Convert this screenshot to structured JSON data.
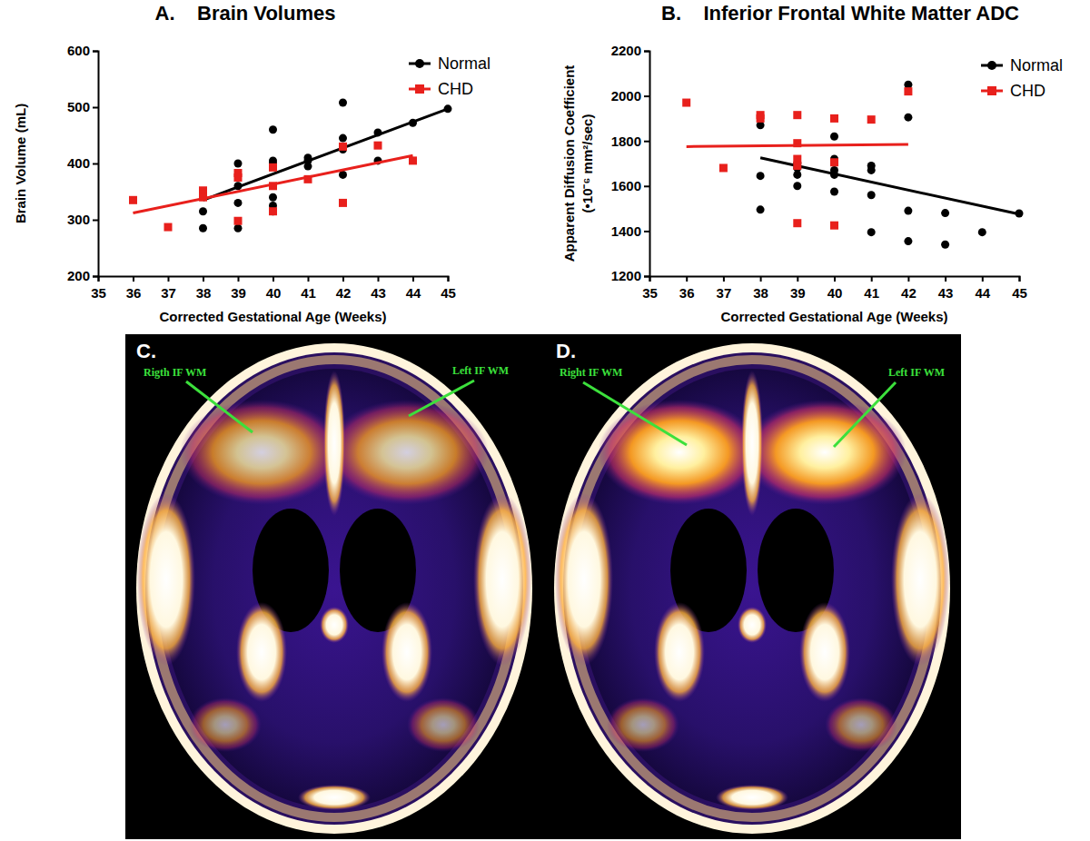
{
  "chart_data": [
    {
      "type": "scatter",
      "title": "A.    Brain Volumes",
      "xlabel": "Corrected Gestational Age (Weeks)",
      "ylabel": "Brain Volume (mL)",
      "xlim": [
        35,
        45
      ],
      "ylim": [
        200,
        600
      ],
      "xticks": [
        35,
        36,
        37,
        38,
        39,
        40,
        41,
        42,
        43,
        44,
        45
      ],
      "yticks": [
        200,
        300,
        400,
        500,
        600
      ],
      "grid": false,
      "legend": "right",
      "series": [
        {
          "name": "Normal",
          "color": "#000000",
          "marker": "circle",
          "x": [
            38,
            38,
            39,
            39,
            39,
            39,
            40,
            40,
            40,
            40,
            40,
            40,
            41,
            41,
            41,
            42,
            42,
            42,
            42,
            43,
            43,
            44,
            45
          ],
          "values": [
            285,
            315,
            285,
            330,
            360,
            400,
            460,
            405,
            400,
            340,
            325,
            315,
            410,
            405,
            395,
            508,
            445,
            425,
            380,
            455,
            405,
            472,
            497
          ],
          "trend": {
            "x": [
              38,
              45
            ],
            "values": [
              335,
              497
            ]
          }
        },
        {
          "name": "CHD",
          "color": "#e8201c",
          "marker": "square",
          "x": [
            36,
            37,
            38,
            38,
            38,
            39,
            39,
            39,
            40,
            40,
            40,
            41,
            42,
            42,
            43,
            44
          ],
          "values": [
            335,
            287,
            352,
            345,
            340,
            383,
            375,
            298,
            393,
            360,
            315,
            372,
            430,
            330,
            432,
            405
          ],
          "trend": {
            "x": [
              36,
              44
            ],
            "values": [
              312,
              414
            ]
          }
        }
      ]
    },
    {
      "type": "scatter",
      "title": "B.    Inferior Frontal White Matter ADC",
      "xlabel": "Corrected Gestational Age (Weeks)",
      "ylabel": [
        "Apparent Diffusion Coefficient",
        "(•10⁻⁶ mm²/sec)"
      ],
      "xlim": [
        35,
        45
      ],
      "ylim": [
        1200,
        2200
      ],
      "xticks": [
        35,
        36,
        37,
        38,
        39,
        40,
        41,
        42,
        43,
        44,
        45
      ],
      "yticks": [
        1200,
        1400,
        1600,
        1800,
        2000,
        2200
      ],
      "grid": false,
      "legend": "right",
      "series": [
        {
          "name": "Normal",
          "color": "#000000",
          "marker": "circle",
          "x": [
            38,
            38,
            38,
            39,
            39,
            39,
            39,
            40,
            40,
            40,
            40,
            40,
            41,
            41,
            41,
            41,
            42,
            42,
            42,
            42,
            43,
            43,
            44,
            45
          ],
          "values": [
            1870,
            1645,
            1495,
            1700,
            1680,
            1650,
            1600,
            1820,
            1720,
            1670,
            1650,
            1575,
            1690,
            1670,
            1560,
            1395,
            2050,
            1905,
            1490,
            1355,
            1480,
            1340,
            1395,
            1478
          ],
          "trend": {
            "x": [
              38,
              45
            ],
            "values": [
              1725,
              1475
            ]
          }
        },
        {
          "name": "CHD",
          "color": "#e8201c",
          "marker": "square",
          "x": [
            36,
            37,
            38,
            38,
            39,
            39,
            39,
            39,
            39,
            40,
            40,
            40,
            41,
            42
          ],
          "values": [
            1970,
            1680,
            1915,
            1900,
            1915,
            1790,
            1720,
            1690,
            1435,
            1900,
            1705,
            1425,
            1895,
            2020
          ],
          "trend": {
            "x": [
              36,
              42
            ],
            "values": [
              1775,
              1785
            ]
          }
        }
      ]
    }
  ],
  "images": [
    {
      "label": "C.",
      "annotations": [
        "Rigth IF WM",
        "Left IF WM"
      ]
    },
    {
      "label": "D.",
      "annotations": [
        "Right IF WM",
        "Left IF WM"
      ]
    }
  ]
}
